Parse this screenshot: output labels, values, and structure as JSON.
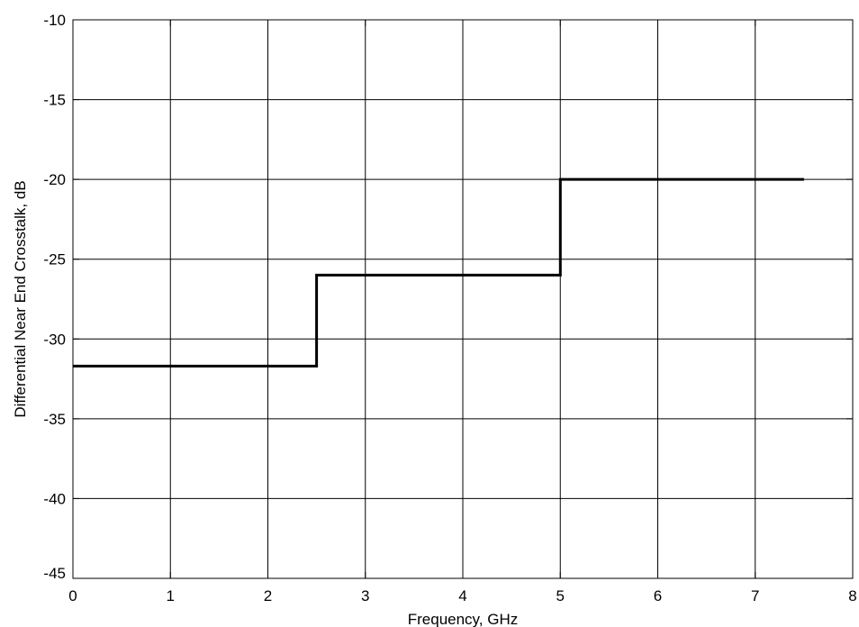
{
  "chart_data": {
    "type": "line",
    "title": "",
    "xlabel": "Frequency, GHz",
    "ylabel": "Differential Near End Crosstalk, dB",
    "xlim": [
      0,
      8
    ],
    "ylim": [
      -45,
      -10
    ],
    "xticks": [
      0,
      1,
      2,
      3,
      4,
      5,
      6,
      7,
      8
    ],
    "yticks": [
      -10,
      -15,
      -20,
      -25,
      -30,
      -35,
      -40,
      -45
    ],
    "xtick_labels": [
      "0",
      "1",
      "2",
      "3",
      "4",
      "5",
      "6",
      "7",
      "8"
    ],
    "ytick_labels": [
      "-10",
      "-15",
      "-20",
      "-25",
      "-30",
      "-35",
      "-40",
      "-45"
    ],
    "grid": true,
    "series": [
      {
        "color": "#000000",
        "step": true,
        "x": [
          0,
          2.5,
          2.5,
          5.0,
          5.0,
          7.5
        ],
        "y": [
          -31.7,
          -31.7,
          -26.0,
          -26.0,
          -20.0,
          -20.0
        ]
      }
    ]
  }
}
